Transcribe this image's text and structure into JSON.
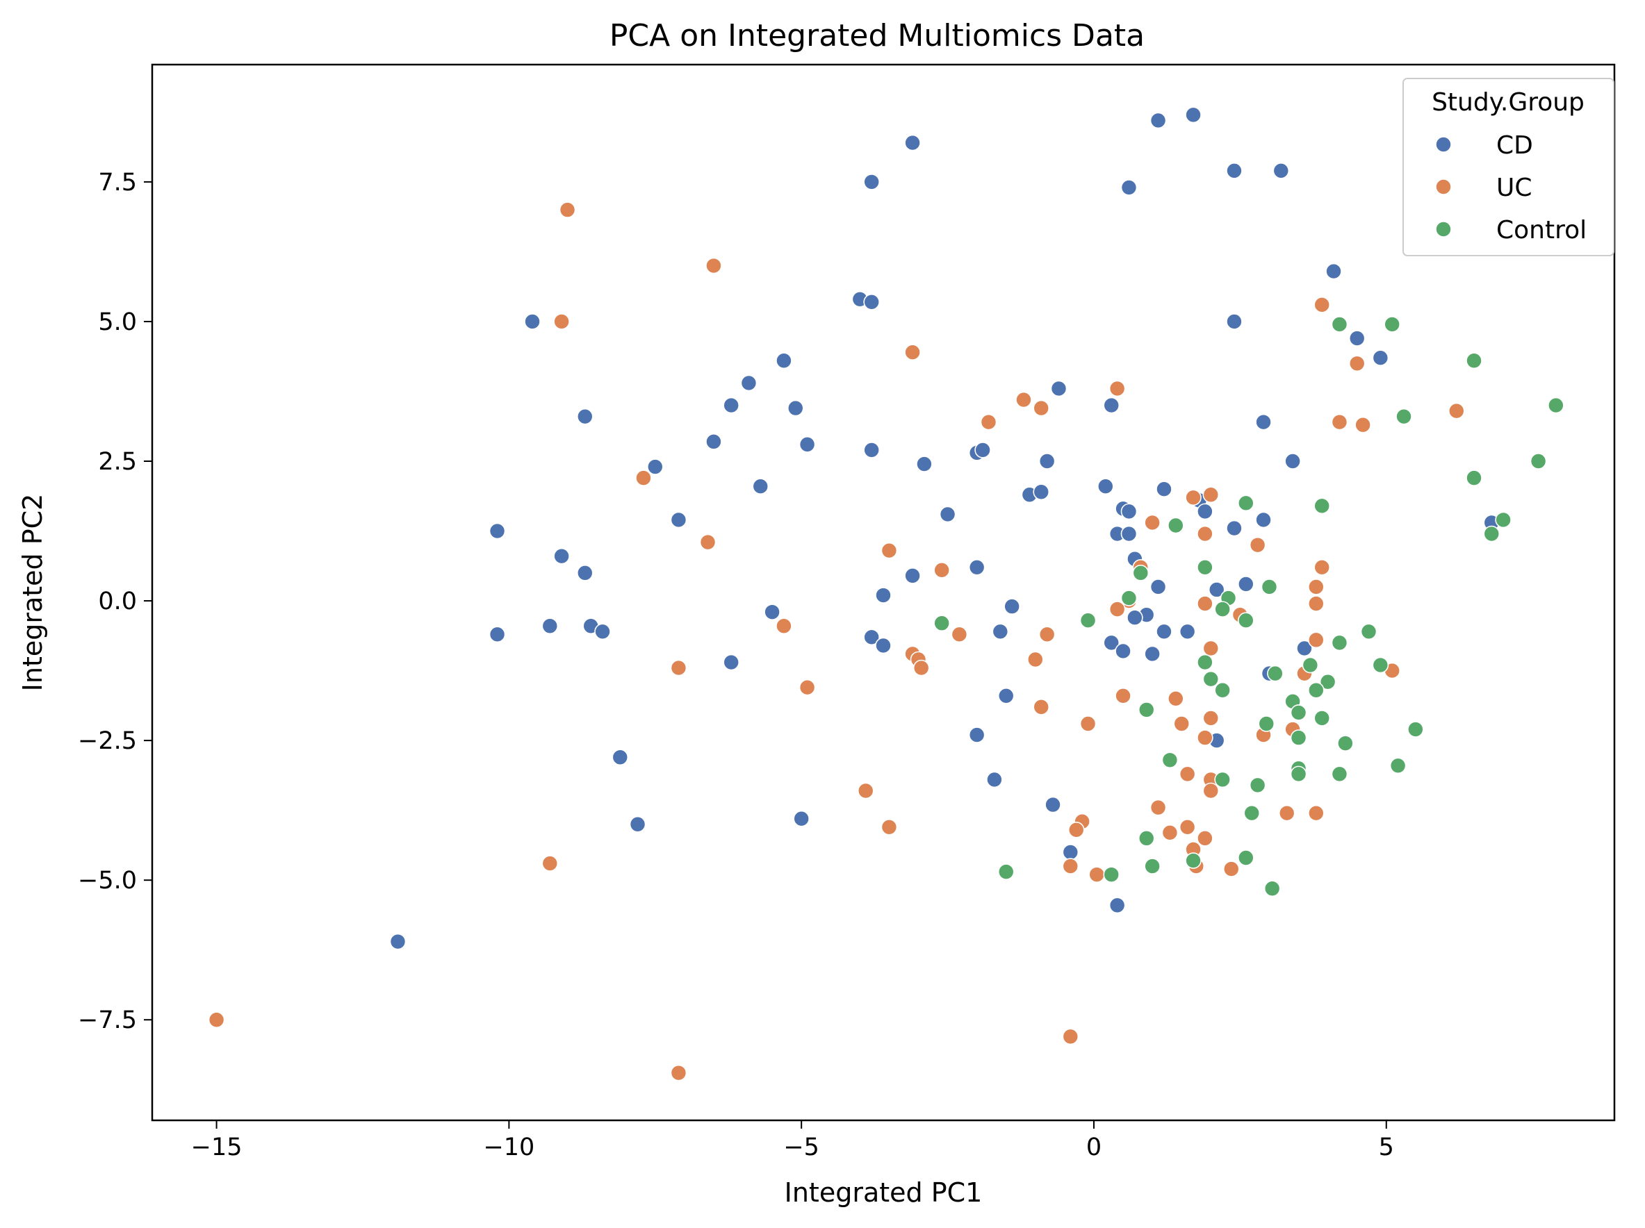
{
  "chart_data": {
    "type": "scatter",
    "title": "PCA on Integrated Multiomics Data",
    "xlabel": "Integrated PC1",
    "ylabel": "Integrated PC2",
    "xlim": [
      -16.1,
      8.9
    ],
    "ylim": [
      -9.3,
      9.6
    ],
    "x_ticks": [
      -15,
      -10,
      -5,
      0,
      5
    ],
    "x_tick_labels": [
      "−15",
      "−10",
      "−5",
      "0",
      "5"
    ],
    "y_ticks": [
      -7.5,
      -5.0,
      -2.5,
      0.0,
      2.5,
      5.0,
      7.5
    ],
    "y_tick_labels": [
      "−7.5",
      "−5.0",
      "−2.5",
      "0.0",
      "2.5",
      "5.0",
      "7.5"
    ],
    "grid": false,
    "legend": {
      "title": "Study.Group",
      "position": "top-right"
    },
    "series": [
      {
        "name": "CD",
        "color": "#4c72b0",
        "points": [
          [
            1.1,
            8.6
          ],
          [
            1.7,
            8.7
          ],
          [
            -3.1,
            8.2
          ],
          [
            2.4,
            7.7
          ],
          [
            3.2,
            7.7
          ],
          [
            -3.8,
            7.5
          ],
          [
            0.6,
            7.4
          ],
          [
            4.1,
            5.9
          ],
          [
            -4.0,
            5.4
          ],
          [
            -3.8,
            5.35
          ],
          [
            -9.6,
            5.0
          ],
          [
            2.4,
            5.0
          ],
          [
            4.5,
            4.7
          ],
          [
            4.9,
            4.35
          ],
          [
            -5.3,
            4.3
          ],
          [
            -5.9,
            3.9
          ],
          [
            -0.6,
            3.8
          ],
          [
            -6.2,
            3.5
          ],
          [
            -5.1,
            3.45
          ],
          [
            0.3,
            3.5
          ],
          [
            -8.7,
            3.3
          ],
          [
            2.9,
            3.2
          ],
          [
            -6.5,
            2.85
          ],
          [
            -4.9,
            2.8
          ],
          [
            -3.8,
            2.7
          ],
          [
            -2.0,
            2.65
          ],
          [
            -1.9,
            2.7
          ],
          [
            -0.8,
            2.5
          ],
          [
            -2.9,
            2.45
          ],
          [
            -7.5,
            2.4
          ],
          [
            3.4,
            2.5
          ],
          [
            -5.7,
            2.05
          ],
          [
            0.2,
            2.05
          ],
          [
            1.2,
            2.0
          ],
          [
            -1.1,
            1.9
          ],
          [
            -0.9,
            1.95
          ],
          [
            1.8,
            1.8
          ],
          [
            1.9,
            1.6
          ],
          [
            -2.5,
            1.55
          ],
          [
            0.5,
            1.65
          ],
          [
            0.6,
            1.6
          ],
          [
            -7.1,
            1.45
          ],
          [
            2.9,
            1.45
          ],
          [
            2.4,
            1.3
          ],
          [
            -10.2,
            1.25
          ],
          [
            0.4,
            1.2
          ],
          [
            0.6,
            1.2
          ],
          [
            6.8,
            1.4
          ],
          [
            -9.1,
            0.8
          ],
          [
            0.7,
            0.75
          ],
          [
            -8.7,
            0.5
          ],
          [
            -3.1,
            0.45
          ],
          [
            -2.0,
            0.6
          ],
          [
            2.6,
            0.3
          ],
          [
            1.1,
            0.25
          ],
          [
            2.1,
            0.2
          ],
          [
            -3.6,
            0.1
          ],
          [
            -1.4,
            -0.1
          ],
          [
            -5.5,
            -0.2
          ],
          [
            0.9,
            -0.25
          ],
          [
            0.7,
            -0.3
          ],
          [
            -9.3,
            -0.45
          ],
          [
            -8.6,
            -0.45
          ],
          [
            -8.4,
            -0.55
          ],
          [
            -10.2,
            -0.6
          ],
          [
            -1.6,
            -0.55
          ],
          [
            1.2,
            -0.55
          ],
          [
            1.6,
            -0.55
          ],
          [
            -3.8,
            -0.65
          ],
          [
            -3.6,
            -0.8
          ],
          [
            0.3,
            -0.75
          ],
          [
            0.5,
            -0.9
          ],
          [
            1.0,
            -0.95
          ],
          [
            3.6,
            -0.85
          ],
          [
            -6.2,
            -1.1
          ],
          [
            3.0,
            -1.3
          ],
          [
            -1.5,
            -1.7
          ],
          [
            -2.0,
            -2.4
          ],
          [
            2.1,
            -2.5
          ],
          [
            -8.1,
            -2.8
          ],
          [
            -1.7,
            -3.2
          ],
          [
            -0.7,
            -3.65
          ],
          [
            -5.0,
            -3.9
          ],
          [
            -7.8,
            -4.0
          ],
          [
            -0.4,
            -4.5
          ],
          [
            0.4,
            -5.45
          ],
          [
            -11.9,
            -6.1
          ]
        ]
      },
      {
        "name": "UC",
        "color": "#dd8452",
        "points": [
          [
            -9.0,
            7.0
          ],
          [
            -6.5,
            6.0
          ],
          [
            -9.1,
            5.0
          ],
          [
            3.9,
            5.3
          ],
          [
            -3.1,
            4.45
          ],
          [
            4.5,
            4.25
          ],
          [
            0.4,
            3.8
          ],
          [
            -1.2,
            3.6
          ],
          [
            -0.9,
            3.45
          ],
          [
            6.2,
            3.4
          ],
          [
            -1.8,
            3.2
          ],
          [
            4.2,
            3.2
          ],
          [
            4.6,
            3.15
          ],
          [
            -7.7,
            2.2
          ],
          [
            1.7,
            1.85
          ],
          [
            2.0,
            1.9
          ],
          [
            1.0,
            1.4
          ],
          [
            1.9,
            1.2
          ],
          [
            -6.6,
            1.05
          ],
          [
            2.8,
            1.0
          ],
          [
            -3.5,
            0.9
          ],
          [
            0.8,
            0.6
          ],
          [
            -2.6,
            0.55
          ],
          [
            3.9,
            0.6
          ],
          [
            3.8,
            0.25
          ],
          [
            0.6,
            0.0
          ],
          [
            0.4,
            -0.15
          ],
          [
            1.9,
            -0.05
          ],
          [
            3.8,
            -0.05
          ],
          [
            2.5,
            -0.25
          ],
          [
            -5.3,
            -0.45
          ],
          [
            -2.3,
            -0.6
          ],
          [
            -0.8,
            -0.6
          ],
          [
            3.8,
            -0.7
          ],
          [
            2.0,
            -0.85
          ],
          [
            -3.1,
            -0.95
          ],
          [
            -3.0,
            -1.05
          ],
          [
            -2.95,
            -1.2
          ],
          [
            -1.0,
            -1.05
          ],
          [
            -7.1,
            -1.2
          ],
          [
            5.1,
            -1.25
          ],
          [
            3.6,
            -1.3
          ],
          [
            -4.9,
            -1.55
          ],
          [
            0.5,
            -1.7
          ],
          [
            1.4,
            -1.75
          ],
          [
            -0.9,
            -1.9
          ],
          [
            2.0,
            -2.1
          ],
          [
            -0.1,
            -2.2
          ],
          [
            1.5,
            -2.2
          ],
          [
            3.4,
            -2.3
          ],
          [
            1.9,
            -2.45
          ],
          [
            2.9,
            -2.4
          ],
          [
            1.6,
            -3.1
          ],
          [
            2.0,
            -3.2
          ],
          [
            2.0,
            -3.4
          ],
          [
            -3.9,
            -3.4
          ],
          [
            1.1,
            -3.7
          ],
          [
            3.3,
            -3.8
          ],
          [
            3.8,
            -3.8
          ],
          [
            -0.2,
            -3.95
          ],
          [
            -0.3,
            -4.1
          ],
          [
            1.6,
            -4.05
          ],
          [
            -3.5,
            -4.05
          ],
          [
            1.3,
            -4.15
          ],
          [
            1.9,
            -4.25
          ],
          [
            1.7,
            -4.45
          ],
          [
            -9.3,
            -4.7
          ],
          [
            -0.4,
            -4.75
          ],
          [
            1.75,
            -4.75
          ],
          [
            2.35,
            -4.8
          ],
          [
            0.05,
            -4.9
          ],
          [
            -0.4,
            -7.8
          ],
          [
            -15.0,
            -7.5
          ],
          [
            -7.1,
            -8.45
          ]
        ]
      },
      {
        "name": "Control",
        "color": "#55a868",
        "points": [
          [
            4.2,
            4.95
          ],
          [
            5.1,
            4.95
          ],
          [
            6.5,
            4.3
          ],
          [
            7.9,
            3.5
          ],
          [
            5.3,
            3.3
          ],
          [
            7.6,
            2.5
          ],
          [
            6.5,
            2.2
          ],
          [
            2.6,
            1.75
          ],
          [
            3.9,
            1.7
          ],
          [
            7.0,
            1.45
          ],
          [
            6.8,
            1.2
          ],
          [
            1.4,
            1.35
          ],
          [
            0.8,
            0.5
          ],
          [
            1.9,
            0.6
          ],
          [
            3.0,
            0.25
          ],
          [
            0.6,
            0.05
          ],
          [
            2.3,
            0.05
          ],
          [
            2.2,
            -0.15
          ],
          [
            -0.1,
            -0.35
          ],
          [
            -2.6,
            -0.4
          ],
          [
            2.6,
            -0.35
          ],
          [
            4.7,
            -0.55
          ],
          [
            4.2,
            -0.75
          ],
          [
            1.9,
            -1.1
          ],
          [
            3.7,
            -1.15
          ],
          [
            4.9,
            -1.15
          ],
          [
            3.1,
            -1.3
          ],
          [
            2.0,
            -1.4
          ],
          [
            4.0,
            -1.45
          ],
          [
            2.2,
            -1.6
          ],
          [
            3.8,
            -1.6
          ],
          [
            3.4,
            -1.8
          ],
          [
            0.9,
            -1.95
          ],
          [
            3.5,
            -2.0
          ],
          [
            3.9,
            -2.1
          ],
          [
            2.95,
            -2.2
          ],
          [
            5.5,
            -2.3
          ],
          [
            3.5,
            -2.45
          ],
          [
            4.3,
            -2.55
          ],
          [
            1.3,
            -2.85
          ],
          [
            5.2,
            -2.95
          ],
          [
            3.5,
            -3.0
          ],
          [
            3.5,
            -3.1
          ],
          [
            4.2,
            -3.1
          ],
          [
            2.2,
            -3.2
          ],
          [
            2.8,
            -3.3
          ],
          [
            2.7,
            -3.8
          ],
          [
            0.9,
            -4.25
          ],
          [
            2.6,
            -4.6
          ],
          [
            1.7,
            -4.65
          ],
          [
            1.0,
            -4.75
          ],
          [
            -1.5,
            -4.85
          ],
          [
            0.3,
            -4.9
          ],
          [
            3.05,
            -5.15
          ]
        ]
      }
    ]
  }
}
